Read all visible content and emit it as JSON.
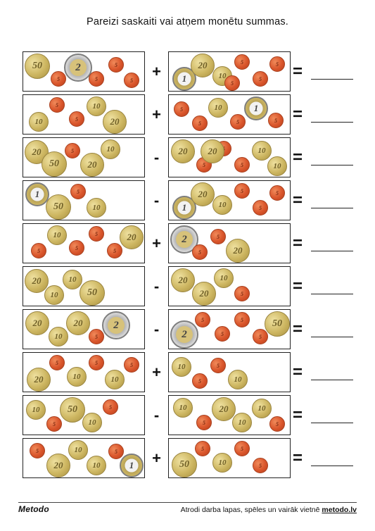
{
  "title": "Pareizi saskaiti vai atņem monētu summas.",
  "equals_sign": "=",
  "rows": [
    {
      "op": "+",
      "left": [
        "50",
        "5",
        "2",
        "5",
        "5",
        "5"
      ],
      "right": [
        "1",
        "20",
        "10",
        "5",
        "5",
        "5",
        "5"
      ]
    },
    {
      "op": "+",
      "left": [
        "10",
        "5",
        "5",
        "10",
        "20"
      ],
      "right": [
        "5",
        "5",
        "10",
        "5",
        "1",
        "5"
      ]
    },
    {
      "op": "-",
      "left": [
        "20",
        "50",
        "5",
        "20",
        "10"
      ],
      "right": [
        "20",
        "5",
        "5",
        "5",
        "10",
        "10",
        "20"
      ]
    },
    {
      "op": "-",
      "left": [
        "1",
        "50",
        "5",
        "10"
      ],
      "right": [
        "1",
        "20",
        "10",
        "5",
        "5",
        "5"
      ]
    },
    {
      "op": "+",
      "left": [
        "5",
        "10",
        "5",
        "5",
        "5",
        "20"
      ],
      "right": [
        "2",
        "5",
        "5",
        "20"
      ]
    },
    {
      "op": "-",
      "left": [
        "20",
        "10",
        "10",
        "50"
      ],
      "right": [
        "20",
        "20",
        "10",
        "5"
      ]
    },
    {
      "op": "-",
      "left": [
        "20",
        "10",
        "20",
        "5",
        "2"
      ],
      "right": [
        "2",
        "5",
        "5",
        "5",
        "5",
        "50"
      ]
    },
    {
      "op": "+",
      "left": [
        "20",
        "5",
        "10",
        "5",
        "10",
        "5"
      ],
      "right": [
        "10",
        "5",
        "5",
        "10"
      ]
    },
    {
      "op": "-",
      "left": [
        "10",
        "5",
        "50",
        "10",
        "5"
      ],
      "right": [
        "10",
        "5",
        "20",
        "10",
        "10",
        "5"
      ]
    },
    {
      "op": "+",
      "left": [
        "5",
        "20",
        "10",
        "10",
        "5",
        "1"
      ],
      "right": [
        "50",
        "5",
        "10",
        "5",
        "5"
      ]
    }
  ],
  "footer": {
    "logo": "Metodo",
    "tagline_text": "Atrodi darba lapas, spēles un vairāk vietnē ",
    "tagline_link": "metodo.lv"
  }
}
